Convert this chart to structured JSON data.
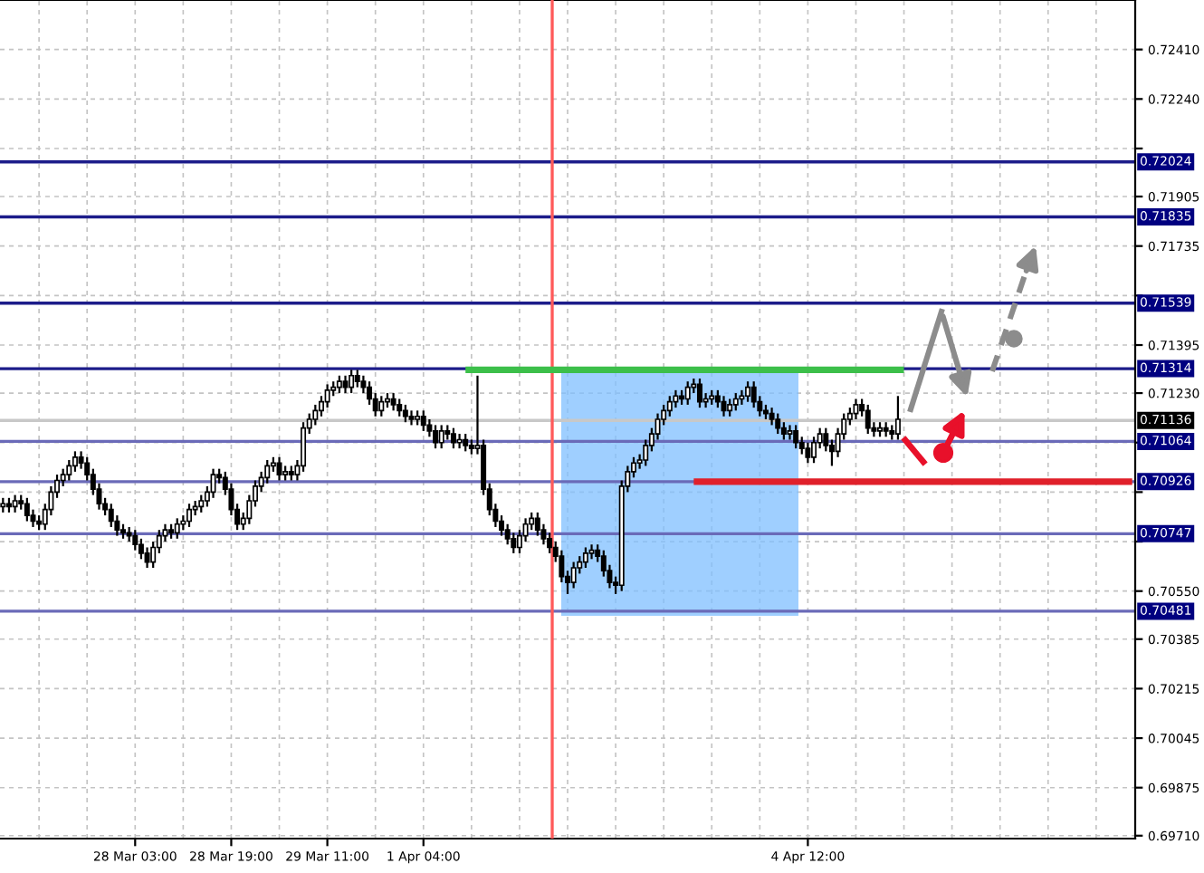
{
  "chart_data": {
    "type": "candlestick",
    "categories": [
      null,
      null,
      null,
      null,
      null,
      null,
      null,
      null,
      null,
      null,
      null,
      null,
      null,
      null,
      null,
      null,
      null,
      null,
      null,
      null,
      null,
      null,
      "28 Mar 03:00",
      null,
      null,
      null,
      null,
      null,
      null,
      null,
      null,
      null,
      null,
      null,
      null,
      null,
      null,
      null,
      "28 Mar 19:00",
      null,
      null,
      null,
      null,
      null,
      null,
      null,
      null,
      null,
      null,
      null,
      null,
      null,
      null,
      null,
      "29 Mar 11:00",
      null,
      null,
      null,
      null,
      null,
      null,
      null,
      null,
      null,
      null,
      null,
      null,
      null,
      null,
      null,
      "1 Apr 04:00",
      null,
      null,
      null,
      null,
      null,
      null,
      null,
      null,
      null,
      null,
      null,
      null,
      null,
      null,
      null,
      null,
      null,
      null,
      null,
      null,
      null,
      null,
      null,
      null,
      null,
      null,
      null,
      null,
      null,
      null,
      null,
      null,
      null,
      null,
      null,
      null,
      null,
      null,
      null,
      null,
      null,
      null,
      null,
      null,
      null,
      null,
      null,
      null,
      null,
      null,
      null,
      null,
      null,
      null,
      null,
      null,
      null,
      null,
      null,
      null,
      null,
      null,
      null,
      "4 Apr 12:00",
      null,
      null,
      null,
      null,
      null,
      null,
      null,
      null,
      null,
      null,
      null,
      null,
      null,
      null,
      null,
      null,
      null,
      null,
      null,
      null,
      null,
      null,
      null,
      null,
      null,
      null,
      null,
      null,
      null,
      null,
      null,
      null,
      null,
      null,
      null,
      null,
      null,
      null,
      null,
      null,
      null,
      null,
      null,
      null,
      null,
      null,
      null,
      null,
      null,
      null,
      null,
      null,
      null,
      null
    ],
    "ohlc": [
      [
        0.7084,
        0.7087,
        0.7082,
        0.7085
      ],
      [
        0.7085,
        0.7087,
        0.7082,
        0.7084
      ],
      [
        0.7084,
        0.7088,
        0.7082,
        0.7086
      ],
      [
        0.7086,
        0.7088,
        0.7083,
        0.7085
      ],
      [
        0.7085,
        0.7087,
        0.7079,
        0.7081
      ],
      [
        0.7081,
        0.7083,
        0.7077,
        0.7079
      ],
      [
        0.7079,
        0.7081,
        0.7076,
        0.7078
      ],
      [
        0.7078,
        0.7085,
        0.7076,
        0.7083
      ],
      [
        0.7083,
        0.7091,
        0.7081,
        0.7089
      ],
      [
        0.7089,
        0.7095,
        0.7087,
        0.7093
      ],
      [
        0.7093,
        0.7097,
        0.7091,
        0.7095
      ],
      [
        0.7095,
        0.71,
        0.7093,
        0.7098
      ],
      [
        0.7098,
        0.7103,
        0.7096,
        0.7101
      ],
      [
        0.7101,
        0.7103,
        0.7097,
        0.7099
      ],
      [
        0.7099,
        0.7101,
        0.7093,
        0.7095
      ],
      [
        0.7095,
        0.7097,
        0.7088,
        0.709
      ],
      [
        0.709,
        0.7092,
        0.7083,
        0.7085
      ],
      [
        0.7085,
        0.7087,
        0.7081,
        0.7083
      ],
      [
        0.7083,
        0.7085,
        0.7077,
        0.7079
      ],
      [
        0.7079,
        0.7081,
        0.7074,
        0.7076
      ],
      [
        0.7076,
        0.7078,
        0.7073,
        0.7075
      ],
      [
        0.7075,
        0.7077,
        0.7072,
        0.7074
      ],
      [
        0.7074,
        0.7076,
        0.7069,
        0.7071
      ],
      [
        0.7071,
        0.7073,
        0.7066,
        0.7068
      ],
      [
        0.7068,
        0.707,
        0.7063,
        0.7065
      ],
      [
        0.7065,
        0.7072,
        0.7063,
        0.707
      ],
      [
        0.707,
        0.7076,
        0.7068,
        0.7074
      ],
      [
        0.7074,
        0.7078,
        0.7072,
        0.7076
      ],
      [
        0.7076,
        0.7078,
        0.7073,
        0.7075
      ],
      [
        0.7075,
        0.708,
        0.7073,
        0.7078
      ],
      [
        0.7078,
        0.7081,
        0.7076,
        0.7079
      ],
      [
        0.7079,
        0.7085,
        0.7077,
        0.7083
      ],
      [
        0.7083,
        0.7086,
        0.7081,
        0.7084
      ],
      [
        0.7084,
        0.7088,
        0.7082,
        0.7086
      ],
      [
        0.7086,
        0.7091,
        0.7084,
        0.7089
      ],
      [
        0.7089,
        0.7097,
        0.7087,
        0.7095
      ],
      [
        0.7095,
        0.7097,
        0.7092,
        0.7094
      ],
      [
        0.7094,
        0.7096,
        0.7088,
        0.709
      ],
      [
        0.709,
        0.7092,
        0.7081,
        0.7083
      ],
      [
        0.7083,
        0.7085,
        0.7076,
        0.7078
      ],
      [
        0.7078,
        0.7082,
        0.7076,
        0.708
      ],
      [
        0.708,
        0.7088,
        0.7078,
        0.7086
      ],
      [
        0.7086,
        0.7093,
        0.7084,
        0.7091
      ],
      [
        0.7091,
        0.7096,
        0.7089,
        0.7094
      ],
      [
        0.7094,
        0.71,
        0.7092,
        0.7098
      ],
      [
        0.7098,
        0.7101,
        0.7096,
        0.7099
      ],
      [
        0.7099,
        0.7101,
        0.7093,
        0.7095
      ],
      [
        0.7095,
        0.7098,
        0.7093,
        0.7096
      ],
      [
        0.7096,
        0.7098,
        0.7093,
        0.7095
      ],
      [
        0.7095,
        0.71,
        0.7093,
        0.7098
      ],
      [
        0.7098,
        0.7113,
        0.7096,
        0.7111
      ],
      [
        0.7111,
        0.7116,
        0.7109,
        0.7114
      ],
      [
        0.7114,
        0.7119,
        0.7112,
        0.7117
      ],
      [
        0.7117,
        0.7122,
        0.7115,
        0.712
      ],
      [
        0.712,
        0.7126,
        0.7118,
        0.7124
      ],
      [
        0.7124,
        0.7127,
        0.7122,
        0.7125
      ],
      [
        0.7125,
        0.7129,
        0.7123,
        0.7127
      ],
      [
        0.7127,
        0.7129,
        0.7123,
        0.7125
      ],
      [
        0.7125,
        0.7131,
        0.7123,
        0.7129
      ],
      [
        0.7129,
        0.7131,
        0.7125,
        0.7127
      ],
      [
        0.7127,
        0.7129,
        0.7123,
        0.7125
      ],
      [
        0.7125,
        0.7127,
        0.7119,
        0.7121
      ],
      [
        0.7121,
        0.7123,
        0.7115,
        0.7117
      ],
      [
        0.7117,
        0.7122,
        0.7115,
        0.712
      ],
      [
        0.712,
        0.7123,
        0.7118,
        0.7121
      ],
      [
        0.7121,
        0.7123,
        0.7117,
        0.7119
      ],
      [
        0.7119,
        0.7121,
        0.7115,
        0.7117
      ],
      [
        0.7117,
        0.7119,
        0.7113,
        0.7115
      ],
      [
        0.7115,
        0.7117,
        0.7112,
        0.7114
      ],
      [
        0.7114,
        0.7117,
        0.7112,
        0.7115
      ],
      [
        0.7115,
        0.7117,
        0.711,
        0.7112
      ],
      [
        0.7112,
        0.7114,
        0.7108,
        0.711
      ],
      [
        0.711,
        0.7112,
        0.7104,
        0.7106
      ],
      [
        0.7106,
        0.7112,
        0.7104,
        0.711
      ],
      [
        0.711,
        0.7112,
        0.7107,
        0.7109
      ],
      [
        0.7109,
        0.7111,
        0.7104,
        0.7106
      ],
      [
        0.7106,
        0.7109,
        0.7104,
        0.7107
      ],
      [
        0.7107,
        0.7109,
        0.7103,
        0.7105
      ],
      [
        0.7105,
        0.7107,
        0.7102,
        0.7104
      ],
      [
        0.7104,
        0.7129,
        0.7102,
        0.7105
      ],
      [
        0.7105,
        0.7107,
        0.7088,
        0.709
      ],
      [
        0.709,
        0.7092,
        0.7081,
        0.7083
      ],
      [
        0.7083,
        0.7085,
        0.7077,
        0.7079
      ],
      [
        0.7079,
        0.7081,
        0.7074,
        0.7076
      ],
      [
        0.7076,
        0.7078,
        0.7071,
        0.7073
      ],
      [
        0.7073,
        0.7075,
        0.7068,
        0.707
      ],
      [
        0.707,
        0.7076,
        0.7068,
        0.7074
      ],
      [
        0.7074,
        0.708,
        0.7072,
        0.7078
      ],
      [
        0.7078,
        0.7082,
        0.7076,
        0.708
      ],
      [
        0.708,
        0.7082,
        0.7074,
        0.7076
      ],
      [
        0.7076,
        0.7078,
        0.7071,
        0.7073
      ],
      [
        0.7073,
        0.7075,
        0.7068,
        0.707
      ],
      [
        0.707,
        0.7072,
        0.7065,
        0.7067
      ],
      [
        0.7067,
        0.7069,
        0.7058,
        0.706
      ],
      [
        0.706,
        0.7062,
        0.7054,
        0.7058
      ],
      [
        0.7058,
        0.7065,
        0.7056,
        0.7063
      ],
      [
        0.7063,
        0.7067,
        0.7061,
        0.7065
      ],
      [
        0.7065,
        0.707,
        0.7063,
        0.7068
      ],
      [
        0.7068,
        0.7071,
        0.7066,
        0.7069
      ],
      [
        0.7069,
        0.7071,
        0.7065,
        0.7067
      ],
      [
        0.7067,
        0.7069,
        0.706,
        0.7062
      ],
      [
        0.7062,
        0.7064,
        0.7056,
        0.7058
      ],
      [
        0.7058,
        0.706,
        0.7054,
        0.7057
      ],
      [
        0.7057,
        0.7093,
        0.7055,
        0.7091
      ],
      [
        0.7091,
        0.7098,
        0.7089,
        0.7096
      ],
      [
        0.7096,
        0.7101,
        0.7094,
        0.7099
      ],
      [
        0.7099,
        0.7102,
        0.7097,
        0.71
      ],
      [
        0.71,
        0.7107,
        0.7098,
        0.7105
      ],
      [
        0.7105,
        0.7111,
        0.7103,
        0.7109
      ],
      [
        0.7109,
        0.7116,
        0.7107,
        0.7114
      ],
      [
        0.7114,
        0.7119,
        0.7112,
        0.7117
      ],
      [
        0.7117,
        0.7122,
        0.7115,
        0.712
      ],
      [
        0.712,
        0.7124,
        0.7118,
        0.7122
      ],
      [
        0.7122,
        0.7124,
        0.7119,
        0.7121
      ],
      [
        0.7121,
        0.7127,
        0.7119,
        0.7125
      ],
      [
        0.7125,
        0.7128,
        0.7123,
        0.7126
      ],
      [
        0.7126,
        0.7128,
        0.7118,
        0.712
      ],
      [
        0.712,
        0.7123,
        0.7118,
        0.7121
      ],
      [
        0.7121,
        0.7124,
        0.7119,
        0.7122
      ],
      [
        0.7122,
        0.7124,
        0.7118,
        0.712
      ],
      [
        0.712,
        0.7122,
        0.7115,
        0.7117
      ],
      [
        0.7117,
        0.7121,
        0.7115,
        0.7119
      ],
      [
        0.7119,
        0.7123,
        0.7117,
        0.7121
      ],
      [
        0.7121,
        0.7124,
        0.7119,
        0.7122
      ],
      [
        0.7122,
        0.7127,
        0.712,
        0.7125
      ],
      [
        0.7125,
        0.7127,
        0.7118,
        0.712
      ],
      [
        0.712,
        0.7122,
        0.7115,
        0.7117
      ],
      [
        0.7117,
        0.7119,
        0.7114,
        0.7116
      ],
      [
        0.7116,
        0.7118,
        0.7112,
        0.7114
      ],
      [
        0.7114,
        0.7116,
        0.7109,
        0.7111
      ],
      [
        0.7111,
        0.7113,
        0.7107,
        0.7109
      ],
      [
        0.7109,
        0.7112,
        0.7107,
        0.711
      ],
      [
        0.711,
        0.7112,
        0.7104,
        0.7106
      ],
      [
        0.7106,
        0.7108,
        0.7102,
        0.7104
      ],
      [
        0.7104,
        0.7106,
        0.7099,
        0.7101
      ],
      [
        0.7101,
        0.7108,
        0.7099,
        0.7106
      ],
      [
        0.7106,
        0.7111,
        0.7104,
        0.7109
      ],
      [
        0.7109,
        0.7111,
        0.7103,
        0.7105
      ],
      [
        0.7105,
        0.7107,
        0.7098,
        0.7103
      ],
      [
        0.7103,
        0.7111,
        0.7101,
        0.7109
      ],
      [
        0.7109,
        0.7116,
        0.7107,
        0.7114
      ],
      [
        0.7114,
        0.7118,
        0.7112,
        0.7116
      ],
      [
        0.7116,
        0.7121,
        0.7114,
        0.7119
      ],
      [
        0.7119,
        0.7121,
        0.7115,
        0.7117
      ],
      [
        0.7117,
        0.7119,
        0.7109,
        0.7111
      ],
      [
        0.7111,
        0.7113,
        0.7108,
        0.711
      ],
      [
        0.711,
        0.7113,
        0.7108,
        0.7111
      ],
      [
        0.7111,
        0.7113,
        0.7108,
        0.711
      ],
      [
        0.711,
        0.7112,
        0.7107,
        0.7109
      ],
      [
        0.7109,
        0.7122,
        0.7107,
        0.7114
      ],
      null,
      null,
      null,
      null,
      null,
      null,
      null,
      null,
      null,
      null,
      null,
      null,
      null,
      null,
      null,
      null,
      null,
      null,
      null,
      null,
      null,
      null,
      null,
      null,
      null,
      null,
      null,
      null,
      null,
      null,
      null,
      null,
      null,
      null,
      null,
      null,
      null,
      null,
      null
    ],
    "series": [
      {
        "type": "line",
        "color": "#e0202a",
        "values": [
          null,
          null,
          null,
          null,
          null,
          null,
          null,
          null,
          null,
          null,
          null,
          null,
          null,
          null,
          null,
          null,
          null,
          null,
          null,
          null,
          null,
          null,
          null,
          null,
          null,
          null,
          null,
          null,
          null,
          null,
          null,
          null,
          null,
          null,
          null,
          null,
          null,
          null,
          null,
          null,
          null,
          null,
          null,
          null,
          null,
          null,
          null,
          null,
          null,
          null,
          null,
          null,
          null,
          null,
          null,
          null,
          null,
          null,
          null,
          null,
          null,
          null,
          null,
          null,
          null,
          null,
          null,
          null,
          null,
          null,
          null,
          null,
          null,
          null,
          null,
          null,
          null,
          null,
          null,
          null,
          null,
          null,
          null,
          null,
          null,
          null,
          null,
          null,
          null,
          null,
          null,
          null,
          null,
          null,
          null,
          null,
          null,
          null,
          null,
          null,
          null,
          null,
          null,
          null,
          null,
          null,
          null,
          null,
          null,
          null,
          null,
          null,
          null,
          null,
          null,
          0.70926,
          0.70926,
          0.70926,
          0.70926,
          0.70926,
          0.70926,
          0.70926,
          0.70926,
          0.70926,
          0.70926,
          0.70926,
          0.70926,
          0.70926,
          0.70926,
          0.70926,
          0.70926,
          0.70926,
          0.70926,
          0.70926,
          0.70926,
          0.70926,
          0.70926,
          0.70926,
          0.70926,
          0.70926,
          0.70926,
          0.70926,
          0.70926,
          0.70926,
          0.70926,
          0.70926,
          0.70926,
          0.70926,
          0.70926,
          0.70926,
          0.70926,
          0.70926,
          0.70926,
          0.70926,
          0.70926,
          0.70926,
          0.70926,
          0.70926,
          0.70926,
          0.70926,
          0.70926,
          0.70926,
          0.70926,
          0.70926,
          0.70926,
          0.70926,
          0.70926,
          0.70926,
          0.70926,
          0.70926,
          0.70926,
          0.70926,
          0.70926,
          0.70926,
          0.70926,
          0.70926,
          0.70926,
          0.70926,
          0.70926,
          0.70926,
          0.70926,
          0.70926,
          0.70926,
          0.70926,
          0.70926,
          0.70926,
          0.70926,
          0.70926,
          0.70926
        ]
      },
      {
        "type": "line",
        "color": "#3cbf4a",
        "values": [
          null,
          null,
          null,
          null,
          null,
          null,
          null,
          null,
          null,
          null,
          null,
          null,
          null,
          null,
          null,
          null,
          null,
          null,
          null,
          null,
          null,
          null,
          null,
          null,
          null,
          null,
          null,
          null,
          null,
          null,
          null,
          null,
          null,
          null,
          null,
          null,
          null,
          null,
          null,
          null,
          null,
          null,
          null,
          null,
          null,
          null,
          null,
          null,
          null,
          null,
          null,
          null,
          null,
          null,
          null,
          null,
          null,
          null,
          null,
          null,
          null,
          null,
          null,
          null,
          null,
          null,
          null,
          null,
          null,
          null,
          null,
          null,
          null,
          null,
          null,
          null,
          null,
          0.7131,
          0.7131,
          0.7131,
          0.7131,
          0.7131,
          0.7131,
          0.7131,
          0.7131,
          0.7131,
          0.7131,
          0.7131,
          0.7131,
          0.7131,
          0.7131,
          0.7131,
          0.7131,
          0.7131,
          0.7131,
          0.7131,
          0.7131,
          0.7131,
          0.7131,
          0.7131,
          0.7131,
          0.7131,
          0.7131,
          0.7131,
          0.7131,
          0.7131,
          0.7131,
          0.7131,
          0.7131,
          0.7131,
          0.7131,
          0.7131,
          0.7131,
          0.7131,
          0.7131,
          0.7131,
          0.7131,
          0.7131,
          0.7131,
          0.7131,
          0.7131,
          0.7131,
          0.7131,
          0.7131,
          0.7131,
          0.7131,
          0.7131,
          0.7131,
          0.7131,
          0.7131,
          0.7131,
          0.7131,
          0.7131,
          0.7131,
          0.7131,
          0.7131,
          0.7131,
          0.7131,
          0.7131,
          0.7131,
          0.7131,
          0.7131,
          0.7131,
          0.7131,
          0.7131,
          0.7131,
          0.7131,
          0.7131,
          0.7131,
          0.7131,
          0.7131,
          null,
          null,
          null,
          null,
          null,
          null,
          null,
          null,
          null,
          null,
          null,
          null,
          null,
          null,
          null,
          null,
          null,
          null,
          null,
          null,
          null,
          null,
          null,
          null,
          null,
          null,
          null,
          null,
          null,
          null,
          null,
          null,
          null,
          null,
          null,
          null,
          null,
          null
        ]
      }
    ],
    "ylim": [
      0.697,
      0.7258
    ],
    "yticks": [
      {
        "value": 0.7241,
        "label": "0.72410"
      },
      {
        "value": 0.7224,
        "label": "0.72240"
      },
      {
        "value": 0.7207,
        "label": null
      },
      {
        "value": 0.71905,
        "label": "0.71905"
      },
      {
        "value": 0.71735,
        "label": "0.71735"
      },
      {
        "value": 0.71565,
        "label": null
      },
      {
        "value": 0.71395,
        "label": "0.71395"
      },
      {
        "value": 0.7123,
        "label": "0.71230"
      },
      {
        "value": 0.7106,
        "label": null
      },
      {
        "value": 0.7089,
        "label": null
      },
      {
        "value": 0.7072,
        "label": null
      },
      {
        "value": 0.7055,
        "label": "0.70550"
      },
      {
        "value": 0.70385,
        "label": "0.70385"
      },
      {
        "value": 0.70215,
        "label": "0.70215"
      },
      {
        "value": 0.70045,
        "label": "0.70045"
      },
      {
        "value": 0.69875,
        "label": "0.69875"
      },
      {
        "value": 0.6971,
        "label": "0.69710"
      }
    ],
    "ref_lines": [
      {
        "axis": "y",
        "value": 0.72024,
        "label": "0.72024",
        "color": "#1c1c8a"
      },
      {
        "axis": "y",
        "value": 0.71835,
        "label": "0.71835",
        "color": "#1c1c8a"
      },
      {
        "axis": "y",
        "value": 0.71539,
        "label": "0.71539",
        "color": "#1c1c8a"
      },
      {
        "axis": "y",
        "value": 0.71314,
        "label": "0.71314",
        "color": "#1c1c8a"
      },
      {
        "axis": "y",
        "value": 0.71136,
        "label": "0.71136",
        "color": "#c8c8c8"
      },
      {
        "axis": "y",
        "value": 0.71064,
        "label": "0.71064",
        "color": "#6a6ab8"
      },
      {
        "axis": "y",
        "value": 0.70926,
        "label": "0.70926",
        "color": "#6a6ab8"
      },
      {
        "axis": "y",
        "value": 0.70747,
        "label": "0.70747",
        "color": "#6a6ab8"
      },
      {
        "axis": "y",
        "value": 0.70481,
        "label": "0.70481",
        "color": "#6a6ab8"
      }
    ],
    "grid": true
  }
}
